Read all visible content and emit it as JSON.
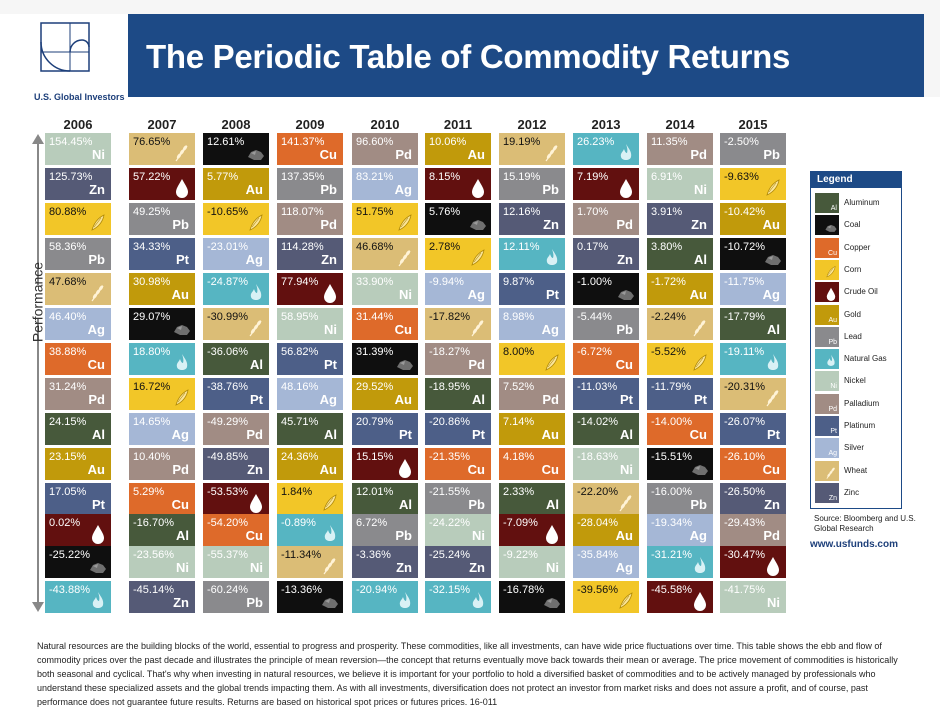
{
  "header": {
    "title": "The Periodic Table of Commodity Returns",
    "logo_text": "U.S. Global Investors"
  },
  "axis_label": "Performance",
  "commodities": {
    "Al": {
      "name": "Aluminum",
      "color": "#47593b",
      "text": "#ffffff",
      "icon": ""
    },
    "Coal": {
      "name": "Coal",
      "color": "#0f0f0f",
      "text": "#ffffff",
      "icon": "coal-icon"
    },
    "Cu": {
      "name": "Copper",
      "color": "#de6a2a",
      "text": "#ffffff",
      "icon": ""
    },
    "Corn": {
      "name": "Corn",
      "color": "#f2c628",
      "text": "#111111",
      "icon": "corn-icon"
    },
    "Oil": {
      "name": "Crude Oil",
      "color": "#62100f",
      "text": "#ffffff",
      "icon": "oil-drop-icon"
    },
    "Au": {
      "name": "Gold",
      "color": "#c19a0b",
      "text": "#ffffff",
      "icon": ""
    },
    "Pb": {
      "name": "Lead",
      "color": "#8a8a8d",
      "text": "#ffffff",
      "icon": ""
    },
    "NG": {
      "name": "Natural Gas",
      "color": "#56b5c2",
      "text": "#ffffff",
      "icon": "flame-icon"
    },
    "Ni": {
      "name": "Nickel",
      "color": "#b8ccbb",
      "text": "#ffffff",
      "icon": ""
    },
    "Pd": {
      "name": "Palladium",
      "color": "#a18c84",
      "text": "#ffffff",
      "icon": ""
    },
    "Pt": {
      "name": "Platinum",
      "color": "#4d5f88",
      "text": "#ffffff",
      "icon": ""
    },
    "Ag": {
      "name": "Silver",
      "color": "#a5b7d6",
      "text": "#ffffff",
      "icon": ""
    },
    "Wheat": {
      "name": "Wheat",
      "color": "#dbbd76",
      "text": "#111111",
      "icon": "wheat-icon"
    },
    "Zn": {
      "name": "Zinc",
      "color": "#555a76",
      "text": "#ffffff",
      "icon": ""
    }
  },
  "legend": {
    "title": "Legend",
    "items": [
      {
        "key": "Al",
        "label": "Aluminum",
        "symbol": "Al"
      },
      {
        "key": "Coal",
        "label": "Coal",
        "symbol": ""
      },
      {
        "key": "Cu",
        "label": "Copper",
        "symbol": "Cu"
      },
      {
        "key": "Corn",
        "label": "Corn",
        "symbol": ""
      },
      {
        "key": "Oil",
        "label": "Crude Oil",
        "symbol": ""
      },
      {
        "key": "Au",
        "label": "Gold",
        "symbol": "Au"
      },
      {
        "key": "Pb",
        "label": "Lead",
        "symbol": "Pb"
      },
      {
        "key": "NG",
        "label": "Natural Gas",
        "symbol": ""
      },
      {
        "key": "Ni",
        "label": "Nickel",
        "symbol": "Ni"
      },
      {
        "key": "Pd",
        "label": "Palladium",
        "symbol": "Pd"
      },
      {
        "key": "Pt",
        "label": "Platinum",
        "symbol": "Pt"
      },
      {
        "key": "Ag",
        "label": "Silver",
        "symbol": "Ag"
      },
      {
        "key": "Wheat",
        "label": "Wheat",
        "symbol": ""
      },
      {
        "key": "Zn",
        "label": "Zinc",
        "symbol": "Zn"
      }
    ]
  },
  "source": "Source: Bloomberg and U.S. Global Research",
  "url": "www.usfunds.com",
  "footer": "Natural resources are the building blocks of the world, essential to progress and prosperity. These commodities, like all investments, can have wide price fluctuations over time. This table shows the ebb and flow of commodity prices over the past decade and illustrates the principle of mean reversion—the concept that returns eventually move back towards their mean or average. The price movement of commodities is historically both seasonal and cyclical. That's why when investing in natural resources, we believe it is important for your portfolio to hold a diversified basket of commodities and to be actively managed by professionals who understand these specialized assets and the global trends impacting them. As with all investments, diversification does not protect an investor from market risks and does not assure a profit, and of course, past performance does not guarantee future results. Returns are based on historical spot prices or futures prices. 16-011",
  "chart_data": {
    "type": "table",
    "title": "The Periodic Table of Commodity Returns",
    "ylabel": "Performance",
    "years": [
      {
        "year": "2006",
        "cells": [
          {
            "v": "154.45%",
            "c": "Ni",
            "s": "Ni"
          },
          {
            "v": "125.73%",
            "c": "Zn",
            "s": "Zn"
          },
          {
            "v": "80.88%",
            "c": "Corn",
            "s": ""
          },
          {
            "v": "58.36%",
            "c": "Pb",
            "s": "Pb"
          },
          {
            "v": "47.68%",
            "c": "Wheat",
            "s": ""
          },
          {
            "v": "46.40%",
            "c": "Ag",
            "s": "Ag"
          },
          {
            "v": "38.88%",
            "c": "Cu",
            "s": "Cu"
          },
          {
            "v": "31.24%",
            "c": "Pd",
            "s": "Pd"
          },
          {
            "v": "24.15%",
            "c": "Al",
            "s": "Al"
          },
          {
            "v": "23.15%",
            "c": "Au",
            "s": "Au"
          },
          {
            "v": "17.05%",
            "c": "Pt",
            "s": "Pt"
          },
          {
            "v": "0.02%",
            "c": "Oil",
            "s": ""
          },
          {
            "v": "-25.22%",
            "c": "Coal",
            "s": ""
          },
          {
            "v": "-43.88%",
            "c": "NG",
            "s": ""
          }
        ]
      },
      {
        "year": "2007",
        "cells": [
          {
            "v": "76.65%",
            "c": "Wheat",
            "s": ""
          },
          {
            "v": "57.22%",
            "c": "Oil",
            "s": ""
          },
          {
            "v": "49.25%",
            "c": "Pb",
            "s": "Pb"
          },
          {
            "v": "34.33%",
            "c": "Pt",
            "s": "Pt"
          },
          {
            "v": "30.98%",
            "c": "Au",
            "s": "Au"
          },
          {
            "v": "29.07%",
            "c": "Coal",
            "s": ""
          },
          {
            "v": "18.80%",
            "c": "NG",
            "s": ""
          },
          {
            "v": "16.72%",
            "c": "Corn",
            "s": ""
          },
          {
            "v": "14.65%",
            "c": "Ag",
            "s": "Ag"
          },
          {
            "v": "10.40%",
            "c": "Pd",
            "s": "Pd"
          },
          {
            "v": "5.29%",
            "c": "Cu",
            "s": "Cu"
          },
          {
            "v": "-16.70%",
            "c": "Al",
            "s": "Al"
          },
          {
            "v": "-23.56%",
            "c": "Ni",
            "s": "Ni"
          },
          {
            "v": "-45.14%",
            "c": "Zn",
            "s": "Zn"
          }
        ]
      },
      {
        "year": "2008",
        "cells": [
          {
            "v": "12.61%",
            "c": "Coal",
            "s": ""
          },
          {
            "v": "5.77%",
            "c": "Au",
            "s": "Au"
          },
          {
            "v": "-10.65%",
            "c": "Corn",
            "s": ""
          },
          {
            "v": "-23.01%",
            "c": "Ag",
            "s": "Ag"
          },
          {
            "v": "-24.87%",
            "c": "NG",
            "s": ""
          },
          {
            "v": "-30.99%",
            "c": "Wheat",
            "s": ""
          },
          {
            "v": "-36.06%",
            "c": "Al",
            "s": "Al"
          },
          {
            "v": "-38.76%",
            "c": "Pt",
            "s": "Pt"
          },
          {
            "v": "-49.29%",
            "c": "Pd",
            "s": "Pd"
          },
          {
            "v": "-49.85%",
            "c": "Zn",
            "s": "Zn"
          },
          {
            "v": "-53.53%",
            "c": "Oil",
            "s": ""
          },
          {
            "v": "-54.20%",
            "c": "Cu",
            "s": "Cu"
          },
          {
            "v": "-55.37%",
            "c": "Ni",
            "s": "Ni"
          },
          {
            "v": "-60.24%",
            "c": "Pb",
            "s": "Pb"
          }
        ]
      },
      {
        "year": "2009",
        "cells": [
          {
            "v": "141.37%",
            "c": "Cu",
            "s": "Cu"
          },
          {
            "v": "137.35%",
            "c": "Pb",
            "s": "Pb"
          },
          {
            "v": "118.07%",
            "c": "Pd",
            "s": "Pd"
          },
          {
            "v": "114.28%",
            "c": "Zn",
            "s": "Zn"
          },
          {
            "v": "77.94%",
            "c": "Oil",
            "s": ""
          },
          {
            "v": "58.95%",
            "c": "Ni",
            "s": "Ni"
          },
          {
            "v": "56.82%",
            "c": "Pt",
            "s": "Pt"
          },
          {
            "v": "48.16%",
            "c": "Ag",
            "s": "Ag"
          },
          {
            "v": "45.71%",
            "c": "Al",
            "s": "Al"
          },
          {
            "v": "24.36%",
            "c": "Au",
            "s": "Au"
          },
          {
            "v": "1.84%",
            "c": "Corn",
            "s": ""
          },
          {
            "v": "-0.89%",
            "c": "NG",
            "s": ""
          },
          {
            "v": "-11.34%",
            "c": "Wheat",
            "s": ""
          },
          {
            "v": "-13.36%",
            "c": "Coal",
            "s": ""
          }
        ]
      },
      {
        "year": "2010",
        "cells": [
          {
            "v": "96.60%",
            "c": "Pd",
            "s": "Pd"
          },
          {
            "v": "83.21%",
            "c": "Ag",
            "s": "Ag"
          },
          {
            "v": "51.75%",
            "c": "Corn",
            "s": ""
          },
          {
            "v": "46.68%",
            "c": "Wheat",
            "s": ""
          },
          {
            "v": "33.90%",
            "c": "Ni",
            "s": "Ni"
          },
          {
            "v": "31.44%",
            "c": "Cu",
            "s": "Cu"
          },
          {
            "v": "31.39%",
            "c": "Coal",
            "s": ""
          },
          {
            "v": "29.52%",
            "c": "Au",
            "s": "Au"
          },
          {
            "v": "20.79%",
            "c": "Pt",
            "s": "Pt"
          },
          {
            "v": "15.15%",
            "c": "Oil",
            "s": ""
          },
          {
            "v": "12.01%",
            "c": "Al",
            "s": "Al"
          },
          {
            "v": "6.72%",
            "c": "Pb",
            "s": "Pb"
          },
          {
            "v": "-3.36%",
            "c": "Zn",
            "s": "Zn"
          },
          {
            "v": "-20.94%",
            "c": "NG",
            "s": ""
          }
        ]
      },
      {
        "year": "2011",
        "cells": [
          {
            "v": "10.06%",
            "c": "Au",
            "s": "Au"
          },
          {
            "v": "8.15%",
            "c": "Oil",
            "s": ""
          },
          {
            "v": "5.76%",
            "c": "Coal",
            "s": ""
          },
          {
            "v": "2.78%",
            "c": "Corn",
            "s": ""
          },
          {
            "v": "-9.94%",
            "c": "Ag",
            "s": "Ag"
          },
          {
            "v": "-17.82%",
            "c": "Wheat",
            "s": ""
          },
          {
            "v": "-18.27%",
            "c": "Pd",
            "s": "Pd"
          },
          {
            "v": "-18.95%",
            "c": "Al",
            "s": "Al"
          },
          {
            "v": "-20.86%",
            "c": "Pt",
            "s": "Pt"
          },
          {
            "v": "-21.35%",
            "c": "Cu",
            "s": "Cu"
          },
          {
            "v": "-21.55%",
            "c": "Pb",
            "s": "Pb"
          },
          {
            "v": "-24.22%",
            "c": "Ni",
            "s": "Ni"
          },
          {
            "v": "-25.24%",
            "c": "Zn",
            "s": "Zn"
          },
          {
            "v": "-32.15%",
            "c": "NG",
            "s": ""
          }
        ]
      },
      {
        "year": "2012",
        "cells": [
          {
            "v": "19.19%",
            "c": "Wheat",
            "s": ""
          },
          {
            "v": "15.19%",
            "c": "Pb",
            "s": "Pb"
          },
          {
            "v": "12.16%",
            "c": "Zn",
            "s": "Zn"
          },
          {
            "v": "12.11%",
            "c": "NG",
            "s": ""
          },
          {
            "v": "9.87%",
            "c": "Pt",
            "s": "Pt"
          },
          {
            "v": "8.98%",
            "c": "Ag",
            "s": "Ag"
          },
          {
            "v": "8.00%",
            "c": "Corn",
            "s": ""
          },
          {
            "v": "7.52%",
            "c": "Pd",
            "s": "Pd"
          },
          {
            "v": "7.14%",
            "c": "Au",
            "s": "Au"
          },
          {
            "v": "4.18%",
            "c": "Cu",
            "s": "Cu"
          },
          {
            "v": "2.33%",
            "c": "Al",
            "s": "Al"
          },
          {
            "v": "-7.09%",
            "c": "Oil",
            "s": ""
          },
          {
            "v": "-9.22%",
            "c": "Ni",
            "s": "Ni"
          },
          {
            "v": "-16.78%",
            "c": "Coal",
            "s": ""
          }
        ]
      },
      {
        "year": "2013",
        "cells": [
          {
            "v": "26.23%",
            "c": "NG",
            "s": ""
          },
          {
            "v": "7.19%",
            "c": "Oil",
            "s": ""
          },
          {
            "v": "1.70%",
            "c": "Pd",
            "s": "Pd"
          },
          {
            "v": "0.17%",
            "c": "Zn",
            "s": "Zn"
          },
          {
            "v": "-1.00%",
            "c": "Coal",
            "s": ""
          },
          {
            "v": "-5.44%",
            "c": "Pb",
            "s": "Pb"
          },
          {
            "v": "-6.72%",
            "c": "Cu",
            "s": "Cu"
          },
          {
            "v": "-11.03%",
            "c": "Pt",
            "s": "Pt"
          },
          {
            "v": "-14.02%",
            "c": "Al",
            "s": "Al"
          },
          {
            "v": "-18.63%",
            "c": "Ni",
            "s": "Ni"
          },
          {
            "v": "-22.20%",
            "c": "Wheat",
            "s": ""
          },
          {
            "v": "-28.04%",
            "c": "Au",
            "s": "Au"
          },
          {
            "v": "-35.84%",
            "c": "Ag",
            "s": "Ag"
          },
          {
            "v": "-39.56%",
            "c": "Corn",
            "s": ""
          }
        ]
      },
      {
        "year": "2014",
        "cells": [
          {
            "v": "11.35%",
            "c": "Pd",
            "s": "Pd"
          },
          {
            "v": "6.91%",
            "c": "Ni",
            "s": "Ni"
          },
          {
            "v": "3.91%",
            "c": "Zn",
            "s": "Zn"
          },
          {
            "v": "3.80%",
            "c": "Al",
            "s": "Al"
          },
          {
            "v": "-1.72%",
            "c": "Au",
            "s": "Au"
          },
          {
            "v": "-2.24%",
            "c": "Wheat",
            "s": ""
          },
          {
            "v": "-5.52%",
            "c": "Corn",
            "s": ""
          },
          {
            "v": "-11.79%",
            "c": "Pt",
            "s": "Pt"
          },
          {
            "v": "-14.00%",
            "c": "Cu",
            "s": "Cu"
          },
          {
            "v": "-15.51%",
            "c": "Coal",
            "s": ""
          },
          {
            "v": "-16.00%",
            "c": "Pb",
            "s": "Pb"
          },
          {
            "v": "-19.34%",
            "c": "Ag",
            "s": "Ag"
          },
          {
            "v": "-31.21%",
            "c": "NG",
            "s": ""
          },
          {
            "v": "-45.58%",
            "c": "Oil",
            "s": ""
          }
        ]
      },
      {
        "year": "2015",
        "cells": [
          {
            "v": "-2.50%",
            "c": "Pb",
            "s": "Pb"
          },
          {
            "v": "-9.63%",
            "c": "Corn",
            "s": ""
          },
          {
            "v": "-10.42%",
            "c": "Au",
            "s": "Au"
          },
          {
            "v": "-10.72%",
            "c": "Coal",
            "s": ""
          },
          {
            "v": "-11.75%",
            "c": "Ag",
            "s": "Ag"
          },
          {
            "v": "-17.79%",
            "c": "Al",
            "s": "Al"
          },
          {
            "v": "-19.11%",
            "c": "NG",
            "s": ""
          },
          {
            "v": "-20.31%",
            "c": "Wheat",
            "s": ""
          },
          {
            "v": "-26.07%",
            "c": "Pt",
            "s": "Pt"
          },
          {
            "v": "-26.10%",
            "c": "Cu",
            "s": "Cu"
          },
          {
            "v": "-26.50%",
            "c": "Zn",
            "s": "Zn"
          },
          {
            "v": "-29.43%",
            "c": "Pd",
            "s": "Pd"
          },
          {
            "v": "-30.47%",
            "c": "Oil",
            "s": ""
          },
          {
            "v": "-41.75%",
            "c": "Ni",
            "s": "Ni"
          }
        ]
      }
    ]
  }
}
